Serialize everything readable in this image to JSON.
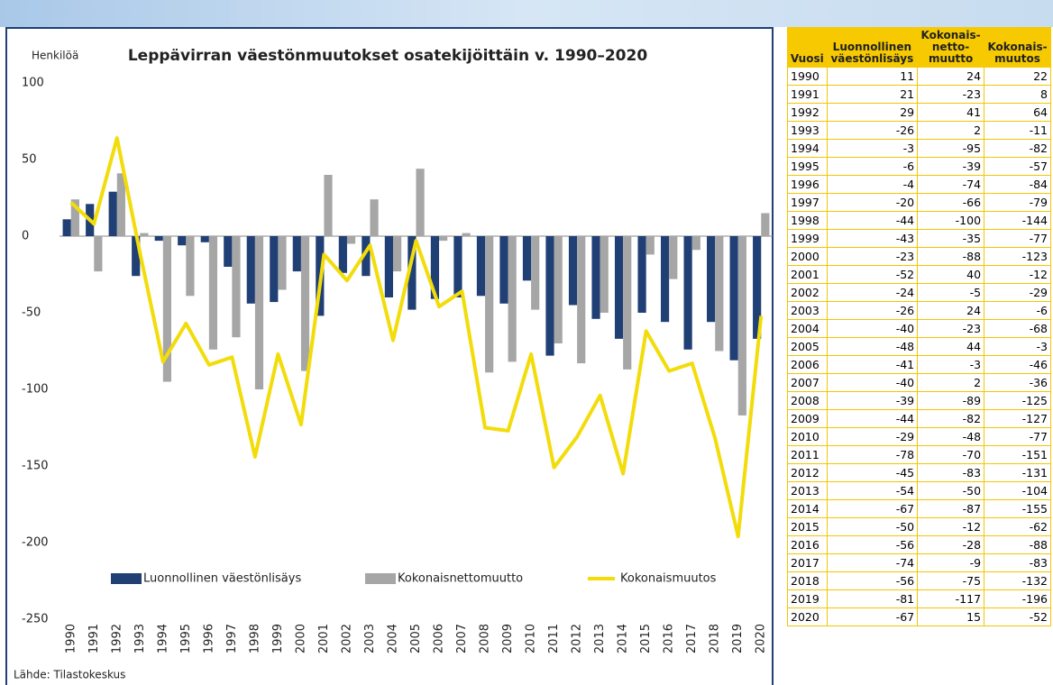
{
  "chart_data": {
    "type": "bar",
    "title": "Leppävirran väestönmuutokset osatekijöittäin v. 1990–2020",
    "y_label": "Henkilöä",
    "source": "Lähde: Tilastokeskus",
    "categories": [
      "1990",
      "1991",
      "1992",
      "1993",
      "1994",
      "1995",
      "1996",
      "1997",
      "1998",
      "1999",
      "2000",
      "2001",
      "2002",
      "2003",
      "2004",
      "2005",
      "2006",
      "2007",
      "2008",
      "2009",
      "2010",
      "2011",
      "2012",
      "2013",
      "2014",
      "2015",
      "2016",
      "2017",
      "2018",
      "2019",
      "2020"
    ],
    "series": [
      {
        "name": "Luonnollinen väestönlisäys",
        "type": "bar",
        "color": "#1f3f75",
        "values": [
          11,
          21,
          29,
          -26,
          -3,
          -6,
          -4,
          -20,
          -44,
          -43,
          -23,
          -52,
          -24,
          -26,
          -40,
          -48,
          -41,
          -40,
          -39,
          -44,
          -29,
          -78,
          -45,
          -54,
          -67,
          -50,
          -56,
          -74,
          -56,
          -81,
          -67
        ]
      },
      {
        "name": "Kokonaisnettomuutto",
        "type": "bar",
        "color": "#a6a6a6",
        "values": [
          24,
          -23,
          41,
          2,
          -95,
          -39,
          -74,
          -66,
          -100,
          -35,
          -88,
          40,
          -5,
          24,
          -23,
          44,
          -3,
          2,
          -89,
          -82,
          -48,
          -70,
          -83,
          -50,
          -87,
          -12,
          -28,
          -9,
          -75,
          -117,
          15
        ]
      },
      {
        "name": "Kokonaismuutos",
        "type": "line",
        "color": "#f2dc0a",
        "values": [
          22,
          8,
          64,
          -11,
          -82,
          -57,
          -84,
          -79,
          -144,
          -77,
          -123,
          -12,
          -29,
          -6,
          -68,
          -3,
          -46,
          -36,
          -125,
          -127,
          -77,
          -151,
          -131,
          -104,
          -155,
          -62,
          -88,
          -83,
          -132,
          -196,
          -52
        ]
      }
    ],
    "ylim": [
      -250,
      100
    ],
    "yticks": [
      -250,
      -200,
      -150,
      -100,
      -50,
      0,
      50,
      100
    ],
    "grid": false
  },
  "table": {
    "headers": [
      [
        "Vuosi"
      ],
      [
        "Luonnollinen",
        "väestönlisäys"
      ],
      [
        "Kokonais-",
        "netto-",
        "muutto"
      ],
      [
        "Kokonais-",
        "muutos"
      ]
    ],
    "rows": [
      [
        "1990",
        11,
        24,
        22
      ],
      [
        "1991",
        21,
        -23,
        8
      ],
      [
        "1992",
        29,
        41,
        64
      ],
      [
        "1993",
        -26,
        2,
        -11
      ],
      [
        "1994",
        -3,
        -95,
        -82
      ],
      [
        "1995",
        -6,
        -39,
        -57
      ],
      [
        "1996",
        -4,
        -74,
        -84
      ],
      [
        "1997",
        -20,
        -66,
        -79
      ],
      [
        "1998",
        -44,
        -100,
        -144
      ],
      [
        "1999",
        -43,
        -35,
        -77
      ],
      [
        "2000",
        -23,
        -88,
        -123
      ],
      [
        "2001",
        -52,
        40,
        -12
      ],
      [
        "2002",
        -24,
        -5,
        -29
      ],
      [
        "2003",
        -26,
        24,
        -6
      ],
      [
        "2004",
        -40,
        -23,
        -68
      ],
      [
        "2005",
        -48,
        44,
        -3
      ],
      [
        "2006",
        -41,
        -3,
        -46
      ],
      [
        "2007",
        -40,
        2,
        -36
      ],
      [
        "2008",
        -39,
        -89,
        -125
      ],
      [
        "2009",
        -44,
        -82,
        -127
      ],
      [
        "2010",
        -29,
        -48,
        -77
      ],
      [
        "2011",
        -78,
        -70,
        -151
      ],
      [
        "2012",
        -45,
        -83,
        -131
      ],
      [
        "2013",
        -54,
        -50,
        -104
      ],
      [
        "2014",
        -67,
        -87,
        -155
      ],
      [
        "2015",
        -50,
        -12,
        -62
      ],
      [
        "2016",
        -56,
        -28,
        -88
      ],
      [
        "2017",
        -74,
        -9,
        -83
      ],
      [
        "2018",
        -56,
        -75,
        -132
      ],
      [
        "2019",
        -81,
        -117,
        -196
      ],
      [
        "2020",
        -67,
        15,
        -52
      ]
    ]
  }
}
